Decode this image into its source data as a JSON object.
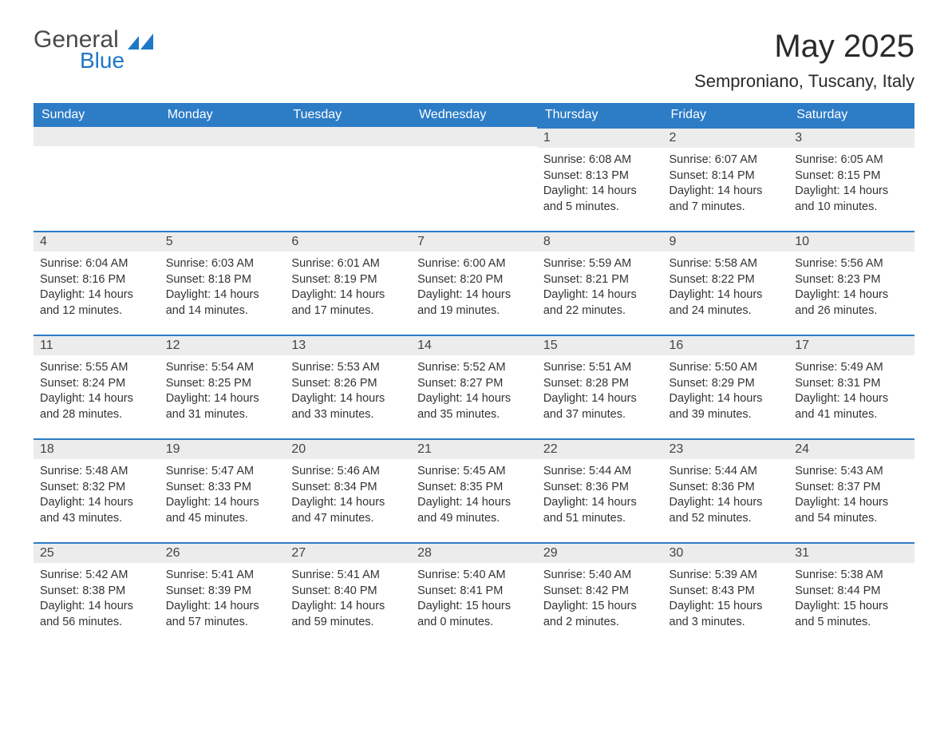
{
  "brand": {
    "word1": "General",
    "word2": "Blue",
    "mark_color": "#1f77c7"
  },
  "title": "May 2025",
  "location": "Semproniano, Tuscany, Italy",
  "colors": {
    "header_bg": "#2d7cc6",
    "header_text": "#ffffff",
    "daynum_bg": "#ececec",
    "daynum_border": "#2d7cc6",
    "body_text": "#333333",
    "page_bg": "#ffffff"
  },
  "day_headers": [
    "Sunday",
    "Monday",
    "Tuesday",
    "Wednesday",
    "Thursday",
    "Friday",
    "Saturday"
  ],
  "weeks": [
    [
      null,
      null,
      null,
      null,
      {
        "n": "1",
        "sunrise": "6:08 AM",
        "sunset": "8:13 PM",
        "daylight": "14 hours and 5 minutes."
      },
      {
        "n": "2",
        "sunrise": "6:07 AM",
        "sunset": "8:14 PM",
        "daylight": "14 hours and 7 minutes."
      },
      {
        "n": "3",
        "sunrise": "6:05 AM",
        "sunset": "8:15 PM",
        "daylight": "14 hours and 10 minutes."
      }
    ],
    [
      {
        "n": "4",
        "sunrise": "6:04 AM",
        "sunset": "8:16 PM",
        "daylight": "14 hours and 12 minutes."
      },
      {
        "n": "5",
        "sunrise": "6:03 AM",
        "sunset": "8:18 PM",
        "daylight": "14 hours and 14 minutes."
      },
      {
        "n": "6",
        "sunrise": "6:01 AM",
        "sunset": "8:19 PM",
        "daylight": "14 hours and 17 minutes."
      },
      {
        "n": "7",
        "sunrise": "6:00 AM",
        "sunset": "8:20 PM",
        "daylight": "14 hours and 19 minutes."
      },
      {
        "n": "8",
        "sunrise": "5:59 AM",
        "sunset": "8:21 PM",
        "daylight": "14 hours and 22 minutes."
      },
      {
        "n": "9",
        "sunrise": "5:58 AM",
        "sunset": "8:22 PM",
        "daylight": "14 hours and 24 minutes."
      },
      {
        "n": "10",
        "sunrise": "5:56 AM",
        "sunset": "8:23 PM",
        "daylight": "14 hours and 26 minutes."
      }
    ],
    [
      {
        "n": "11",
        "sunrise": "5:55 AM",
        "sunset": "8:24 PM",
        "daylight": "14 hours and 28 minutes."
      },
      {
        "n": "12",
        "sunrise": "5:54 AM",
        "sunset": "8:25 PM",
        "daylight": "14 hours and 31 minutes."
      },
      {
        "n": "13",
        "sunrise": "5:53 AM",
        "sunset": "8:26 PM",
        "daylight": "14 hours and 33 minutes."
      },
      {
        "n": "14",
        "sunrise": "5:52 AM",
        "sunset": "8:27 PM",
        "daylight": "14 hours and 35 minutes."
      },
      {
        "n": "15",
        "sunrise": "5:51 AM",
        "sunset": "8:28 PM",
        "daylight": "14 hours and 37 minutes."
      },
      {
        "n": "16",
        "sunrise": "5:50 AM",
        "sunset": "8:29 PM",
        "daylight": "14 hours and 39 minutes."
      },
      {
        "n": "17",
        "sunrise": "5:49 AM",
        "sunset": "8:31 PM",
        "daylight": "14 hours and 41 minutes."
      }
    ],
    [
      {
        "n": "18",
        "sunrise": "5:48 AM",
        "sunset": "8:32 PM",
        "daylight": "14 hours and 43 minutes."
      },
      {
        "n": "19",
        "sunrise": "5:47 AM",
        "sunset": "8:33 PM",
        "daylight": "14 hours and 45 minutes."
      },
      {
        "n": "20",
        "sunrise": "5:46 AM",
        "sunset": "8:34 PM",
        "daylight": "14 hours and 47 minutes."
      },
      {
        "n": "21",
        "sunrise": "5:45 AM",
        "sunset": "8:35 PM",
        "daylight": "14 hours and 49 minutes."
      },
      {
        "n": "22",
        "sunrise": "5:44 AM",
        "sunset": "8:36 PM",
        "daylight": "14 hours and 51 minutes."
      },
      {
        "n": "23",
        "sunrise": "5:44 AM",
        "sunset": "8:36 PM",
        "daylight": "14 hours and 52 minutes."
      },
      {
        "n": "24",
        "sunrise": "5:43 AM",
        "sunset": "8:37 PM",
        "daylight": "14 hours and 54 minutes."
      }
    ],
    [
      {
        "n": "25",
        "sunrise": "5:42 AM",
        "sunset": "8:38 PM",
        "daylight": "14 hours and 56 minutes."
      },
      {
        "n": "26",
        "sunrise": "5:41 AM",
        "sunset": "8:39 PM",
        "daylight": "14 hours and 57 minutes."
      },
      {
        "n": "27",
        "sunrise": "5:41 AM",
        "sunset": "8:40 PM",
        "daylight": "14 hours and 59 minutes."
      },
      {
        "n": "28",
        "sunrise": "5:40 AM",
        "sunset": "8:41 PM",
        "daylight": "15 hours and 0 minutes."
      },
      {
        "n": "29",
        "sunrise": "5:40 AM",
        "sunset": "8:42 PM",
        "daylight": "15 hours and 2 minutes."
      },
      {
        "n": "30",
        "sunrise": "5:39 AM",
        "sunset": "8:43 PM",
        "daylight": "15 hours and 3 minutes."
      },
      {
        "n": "31",
        "sunrise": "5:38 AM",
        "sunset": "8:44 PM",
        "daylight": "15 hours and 5 minutes."
      }
    ]
  ],
  "labels": {
    "sunrise": "Sunrise: ",
    "sunset": "Sunset: ",
    "daylight": "Daylight: "
  }
}
